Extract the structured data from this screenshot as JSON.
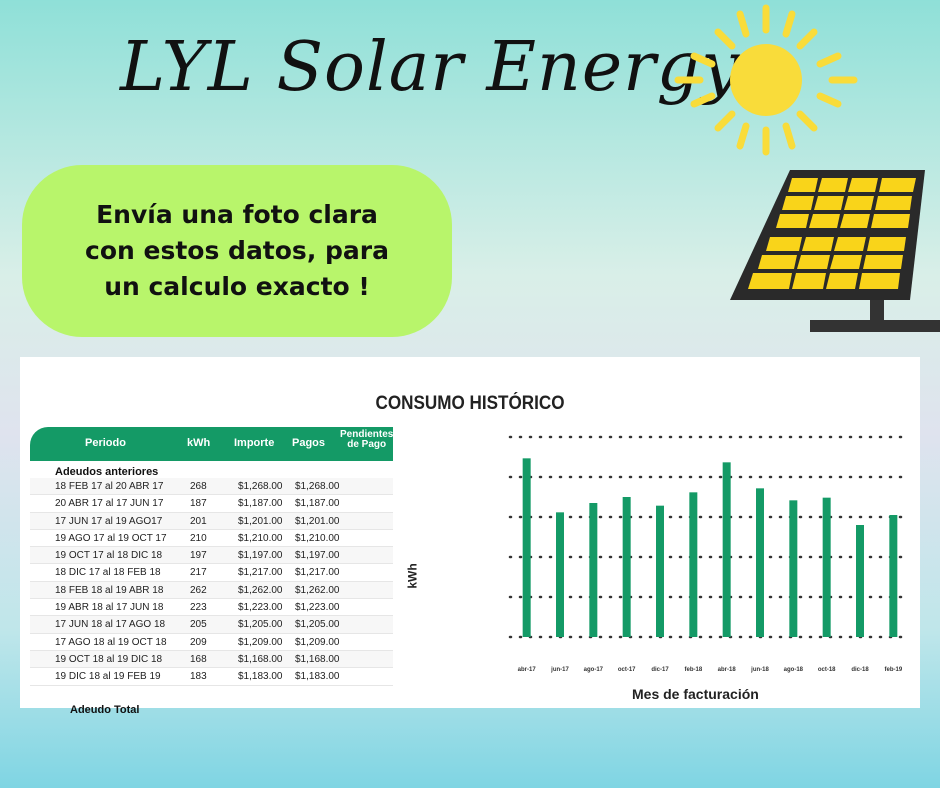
{
  "brand": "LYL Solar Energy",
  "bubble": {
    "line1": "Envía una foto clara",
    "line2": "con estos datos, para",
    "line3": "un calculo exacto !"
  },
  "card": {
    "title": "CONSUMO HISTÓRICO",
    "table": {
      "headers": [
        "Periodo",
        "kWh",
        "Importe",
        "Pagos",
        "Pendientes",
        "de Pago"
      ],
      "subheader": "Adeudos anteriores",
      "rows": [
        [
          "18 FEB 17 al 20 ABR 17",
          "268",
          "$1,268.00",
          "$1,268.00"
        ],
        [
          "20 ABR 17 al 17 JUN 17",
          "187",
          "$1,187.00",
          "$1,187.00"
        ],
        [
          "17 JUN 17 al 19 AGO17",
          "201",
          "$1,201.00",
          "$1,201.00"
        ],
        [
          "19 AGO 17 al 19 OCT 17",
          "210",
          "$1,210.00",
          "$1,210.00"
        ],
        [
          "19 OCT 17 al 18 DIC 18",
          "197",
          "$1,197.00",
          "$1,197.00"
        ],
        [
          "18 DIC 17 al 18 FEB 18",
          "217",
          "$1,217.00",
          "$1,217.00"
        ],
        [
          "18 FEB 18 al 19 ABR 18",
          "262",
          "$1,262.00",
          "$1,262.00"
        ],
        [
          "19 ABR 18 al 17 JUN 18",
          "223",
          "$1,223.00",
          "$1,223.00"
        ],
        [
          "17 JUN 18 al 17 AGO 18",
          "205",
          "$1,205.00",
          "$1,205.00"
        ],
        [
          "17 AGO 18 al 19 OCT 18",
          "209",
          "$1,209.00",
          "$1,209.00"
        ],
        [
          "19 OCT 18 al 19 DIC 18",
          "168",
          "$1,168.00",
          "$1,168.00"
        ],
        [
          "19 DIC 18 al 19 FEB 19",
          "183",
          "$1,183.00",
          "$1,183.00"
        ]
      ],
      "total_label": "Adeudo Total"
    }
  },
  "chart_data": {
    "type": "bar",
    "categories": [
      "abr-17",
      "jun-17",
      "ago-17",
      "oct-17",
      "dic-17",
      "feb-18",
      "abr-18",
      "jun-18",
      "ago-18",
      "oct-18",
      "dic-18",
      "feb-19"
    ],
    "values": [
      268,
      187,
      201,
      210,
      197,
      217,
      262,
      223,
      205,
      209,
      168,
      183
    ],
    "xlabel": "Mes de facturación",
    "ylabel": "kWh",
    "ylim": [
      0,
      300
    ],
    "grid": "dotted",
    "color": "#149a66"
  }
}
